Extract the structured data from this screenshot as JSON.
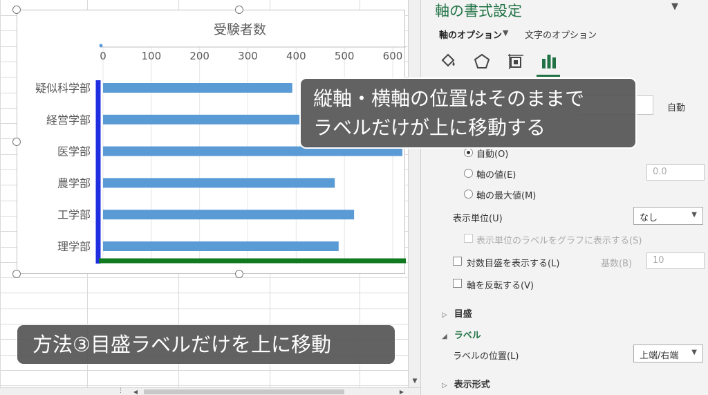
{
  "pane": {
    "title": "軸の書式設定",
    "tabs": [
      {
        "label": "軸のオプション",
        "active": true
      },
      {
        "label": "文字のオプション",
        "active": false
      }
    ],
    "icons": [
      "fill-bucket-icon",
      "pentagon-icon",
      "size-properties-icon",
      "bar-chart-icon"
    ],
    "partial_label": "自動",
    "radios": [
      {
        "label": "自動(O)",
        "selected": true
      },
      {
        "label": "軸の値(E)",
        "selected": false,
        "value": "0.0"
      },
      {
        "label": "軸の最大値(M)",
        "selected": false
      }
    ],
    "display_unit": {
      "label": "表示単位(U)",
      "value": "なし"
    },
    "show_unit_label": "表示単位のラベルをグラフに表示する(S)",
    "log_scale": {
      "label": "対数目盛を表示する(L)",
      "base_label": "基数(B)",
      "base_value": "10"
    },
    "reverse": "軸を反転する(V)",
    "sections": {
      "ticks": "目盛",
      "label": "ラベル",
      "number": "表示形式"
    },
    "label_position": {
      "label": "ラベルの位置(L)",
      "value": "上端/右端"
    }
  },
  "callouts": {
    "main_line1": "縦軸・横軸の位置はそのままで",
    "main_line2": "ラベルだけが上に移動する",
    "method": "方法③目盛ラベルだけを上に移動"
  },
  "colors": {
    "bar": "#5b9bd5",
    "vertical_axis_highlight": "#1f2fe0",
    "horizontal_axis_highlight": "#0f7a1f",
    "pane_accent": "#217346"
  },
  "chart_data": {
    "type": "bar",
    "orientation": "horizontal",
    "title": "受験者数",
    "categories": [
      "疑似科学部",
      "経営学部",
      "医学部",
      "農学部",
      "工学部",
      "理学部"
    ],
    "values": [
      392,
      408,
      640,
      480,
      520,
      488
    ],
    "xlim": [
      0,
      600
    ],
    "x_ticks": [
      0,
      100,
      200,
      300,
      400,
      500,
      600
    ],
    "x_axis_position": "top",
    "grid": true
  }
}
